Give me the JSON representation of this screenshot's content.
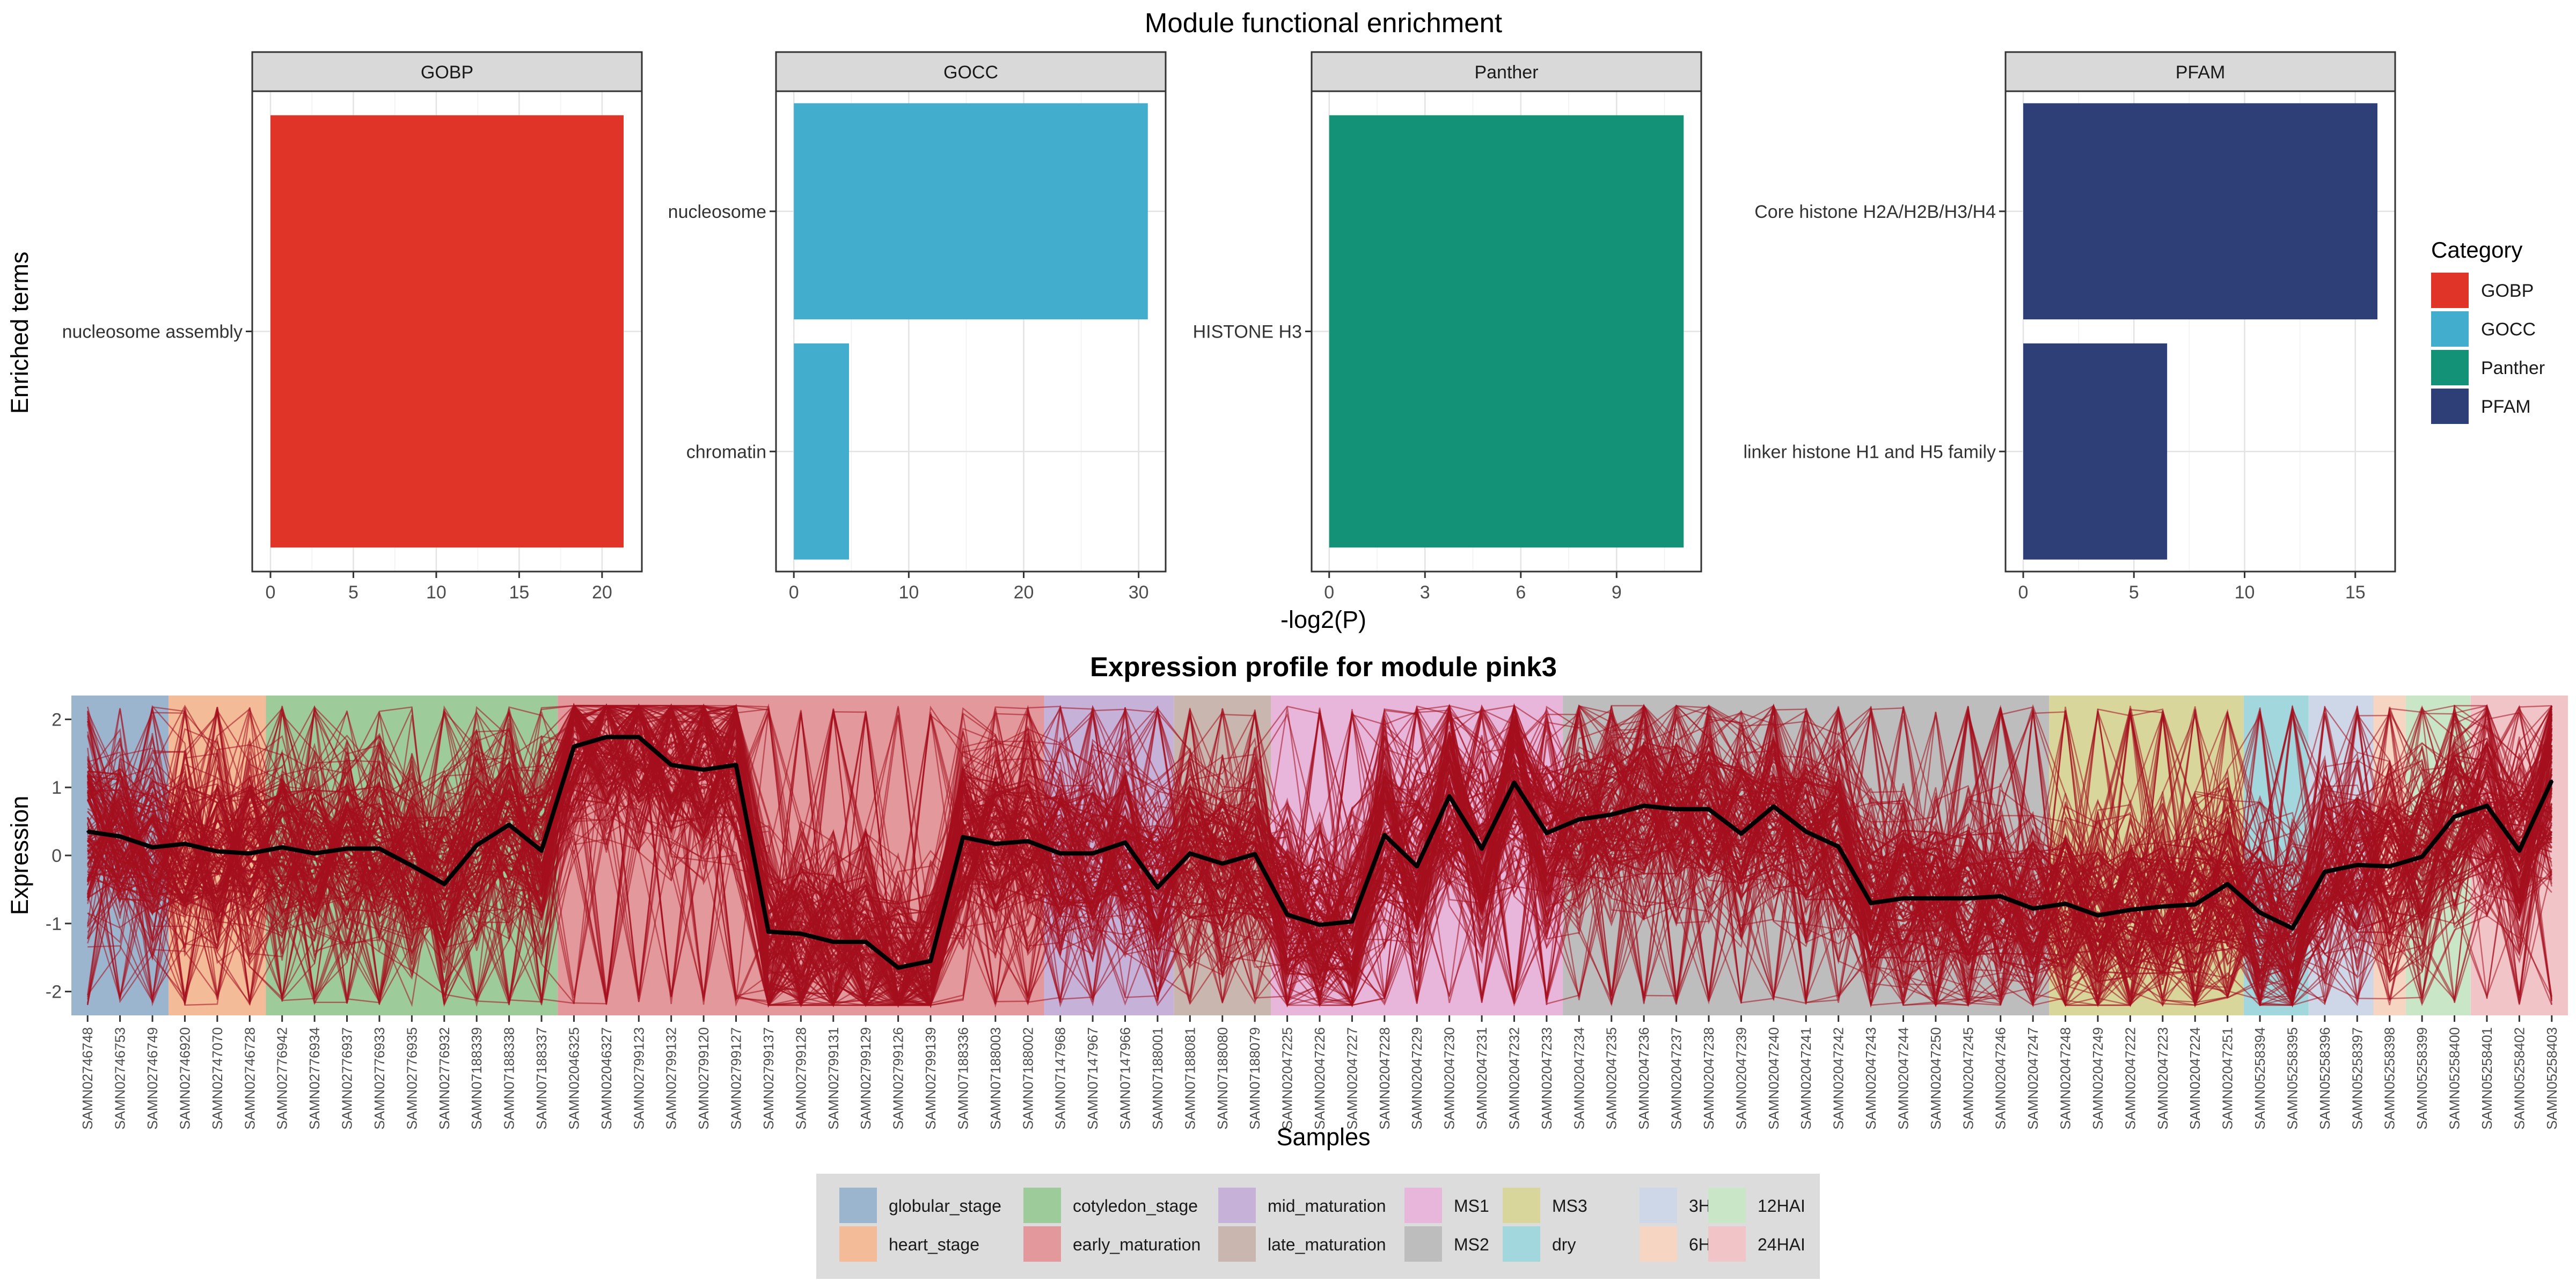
{
  "figure": {
    "top_title": "Module functional enrichment",
    "bottom_title": "Expression profile for module pink3"
  },
  "colors": {
    "GOBP": "#E03428",
    "GOCC": "#43ADCD",
    "Panther": "#139277",
    "PFAM": "#2E3F77",
    "trace": "#A40F1E",
    "mean_line": "#000000",
    "strip_fill": "#D9D9D9",
    "legend_box_fill": "#DCDCDC"
  },
  "chart_data": [
    {
      "type": "bar",
      "orientation": "horizontal",
      "ylabel": "Enriched terms",
      "xlabel": "-log2(P)",
      "grid": true,
      "facets": [
        {
          "name": "GOBP",
          "categories": [
            "nucleosome assembly"
          ],
          "values": [
            21.3
          ],
          "xlim": [
            -1.1,
            22.4
          ],
          "ticks": [
            0,
            5,
            10,
            15,
            20
          ]
        },
        {
          "name": "GOCC",
          "categories": [
            "nucleosome",
            "chromatin"
          ],
          "values": [
            30.8,
            4.8
          ],
          "xlim": [
            -1.55,
            32.35
          ],
          "ticks": [
            0,
            10,
            20,
            30
          ]
        },
        {
          "name": "Panther",
          "categories": [
            "HISTONE H3"
          ],
          "values": [
            11.1
          ],
          "xlim": [
            -0.55,
            11.65
          ],
          "ticks": [
            0,
            3,
            6,
            9
          ]
        },
        {
          "name": "PFAM",
          "categories": [
            "Core histone H2A/H2B/H3/H4",
            "linker histone H1 and H5 family"
          ],
          "values": [
            16.0,
            6.5
          ],
          "xlim": [
            -0.8,
            16.8
          ],
          "ticks": [
            0,
            5,
            10,
            15
          ]
        }
      ],
      "legend": {
        "title": "Category",
        "placement": "right",
        "items": [
          "GOBP",
          "GOCC",
          "Panther",
          "PFAM"
        ]
      }
    },
    {
      "type": "line",
      "title": "Expression profile for module pink3",
      "xlabel": "Samples",
      "ylabel": "Expression",
      "ylim": [
        -2.35,
        2.35
      ],
      "y_ticks": [
        -2,
        -1,
        0,
        1,
        2
      ],
      "x": [
        "SAMN02746748",
        "SAMN02746753",
        "SAMN02746749",
        "SAMN02746920",
        "SAMN02747070",
        "SAMN02746728",
        "SAMN02776942",
        "SAMN02776934",
        "SAMN02776937",
        "SAMN02776933",
        "SAMN02776935",
        "SAMN02776932",
        "SAMN07188339",
        "SAMN07188338",
        "SAMN07188337",
        "SAMN02046325",
        "SAMN02046327",
        "SAMN02799123",
        "SAMN02799132",
        "SAMN02799120",
        "SAMN02799127",
        "SAMN02799137",
        "SAMN02799128",
        "SAMN02799131",
        "SAMN02799129",
        "SAMN02799126",
        "SAMN02799139",
        "SAMN07188336",
        "SAMN07188003",
        "SAMN07188002",
        "SAMN07147968",
        "SAMN07147967",
        "SAMN07147966",
        "SAMN07188001",
        "SAMN07188081",
        "SAMN07188080",
        "SAMN07188079",
        "SAMN02047225",
        "SAMN02047226",
        "SAMN02047227",
        "SAMN02047228",
        "SAMN02047229",
        "SAMN02047230",
        "SAMN02047231",
        "SAMN02047232",
        "SAMN02047233",
        "SAMN02047234",
        "SAMN02047235",
        "SAMN02047236",
        "SAMN02047237",
        "SAMN02047238",
        "SAMN02047239",
        "SAMN02047240",
        "SAMN02047241",
        "SAMN02047242",
        "SAMN02047243",
        "SAMN02047244",
        "SAMN02047250",
        "SAMN02047245",
        "SAMN02047246",
        "SAMN02047247",
        "SAMN02047248",
        "SAMN02047249",
        "SAMN02047222",
        "SAMN02047223",
        "SAMN02047224",
        "SAMN02047251",
        "SAMN05258394",
        "SAMN05258395",
        "SAMN05258396",
        "SAMN05258397",
        "SAMN05258398",
        "SAMN05258399",
        "SAMN05258400",
        "SAMN05258401",
        "SAMN05258402",
        "SAMN05258403"
      ],
      "mean_expression": [
        0.35,
        0.28,
        0.12,
        0.17,
        0.06,
        0.03,
        0.12,
        0.03,
        0.1,
        0.1,
        -0.15,
        -0.42,
        0.15,
        0.45,
        0.07,
        1.6,
        1.74,
        1.74,
        1.33,
        1.26,
        1.33,
        -1.12,
        -1.15,
        -1.27,
        -1.27,
        -1.65,
        -1.55,
        0.27,
        0.17,
        0.21,
        0.03,
        0.03,
        0.19,
        -0.47,
        0.03,
        -0.12,
        0.02,
        -0.87,
        -1.02,
        -0.97,
        0.3,
        -0.16,
        0.87,
        0.1,
        1.07,
        0.33,
        0.53,
        0.6,
        0.73,
        0.68,
        0.68,
        0.32,
        0.72,
        0.35,
        0.13,
        -0.7,
        -0.63,
        -0.63,
        -0.63,
        -0.6,
        -0.78,
        -0.71,
        -0.88,
        -0.8,
        -0.75,
        -0.72,
        -0.42,
        -0.84,
        -1.07,
        -0.24,
        -0.14,
        -0.16,
        -0.02,
        0.57,
        0.73,
        0.07,
        1.1
      ],
      "trace_envelope": {
        "min": -2.2,
        "max": 2.2
      },
      "stages": [
        {
          "name": "globular_stage",
          "color": "#9CB5CF",
          "start": 0,
          "end": 2
        },
        {
          "name": "heart_stage",
          "color": "#F4BB98",
          "start": 3,
          "end": 5
        },
        {
          "name": "cotyledon_stage",
          "color": "#9DCB9A",
          "start": 6,
          "end": 14
        },
        {
          "name": "early_maturation",
          "color": "#E3999C",
          "start": 15,
          "end": 29
        },
        {
          "name": "mid_maturation",
          "color": "#C6B1D9",
          "start": 30,
          "end": 33
        },
        {
          "name": "late_maturation",
          "color": "#C9B6AE",
          "start": 34,
          "end": 36
        },
        {
          "name": "MS1",
          "color": "#E8B6DB",
          "start": 37,
          "end": 45
        },
        {
          "name": "MS2",
          "color": "#BDBDBD",
          "start": 46,
          "end": 60
        },
        {
          "name": "MS3",
          "color": "#D8D69A",
          "start": 61,
          "end": 66
        },
        {
          "name": "dry",
          "color": "#A2D7DE",
          "start": 67,
          "end": 68
        },
        {
          "name": "3HAI",
          "color": "#CDD7E8",
          "start": 69,
          "end": 70
        },
        {
          "name": "6HAI",
          "color": "#F6D6C2",
          "start": 71,
          "end": 71
        },
        {
          "name": "12HAI",
          "color": "#C9E7C7",
          "start": 72,
          "end": 73
        },
        {
          "name": "24HAI",
          "color": "#F1C4C7",
          "start": 74,
          "end": 76
        }
      ],
      "legend": {
        "placement": "bottom",
        "order": [
          "globular_stage",
          "heart_stage",
          "cotyledon_stage",
          "early_maturation",
          "mid_maturation",
          "late_maturation",
          "MS1",
          "MS2",
          "MS3",
          "dry",
          "3HAI",
          "6HAI",
          "12HAI",
          "24HAI"
        ]
      }
    }
  ]
}
